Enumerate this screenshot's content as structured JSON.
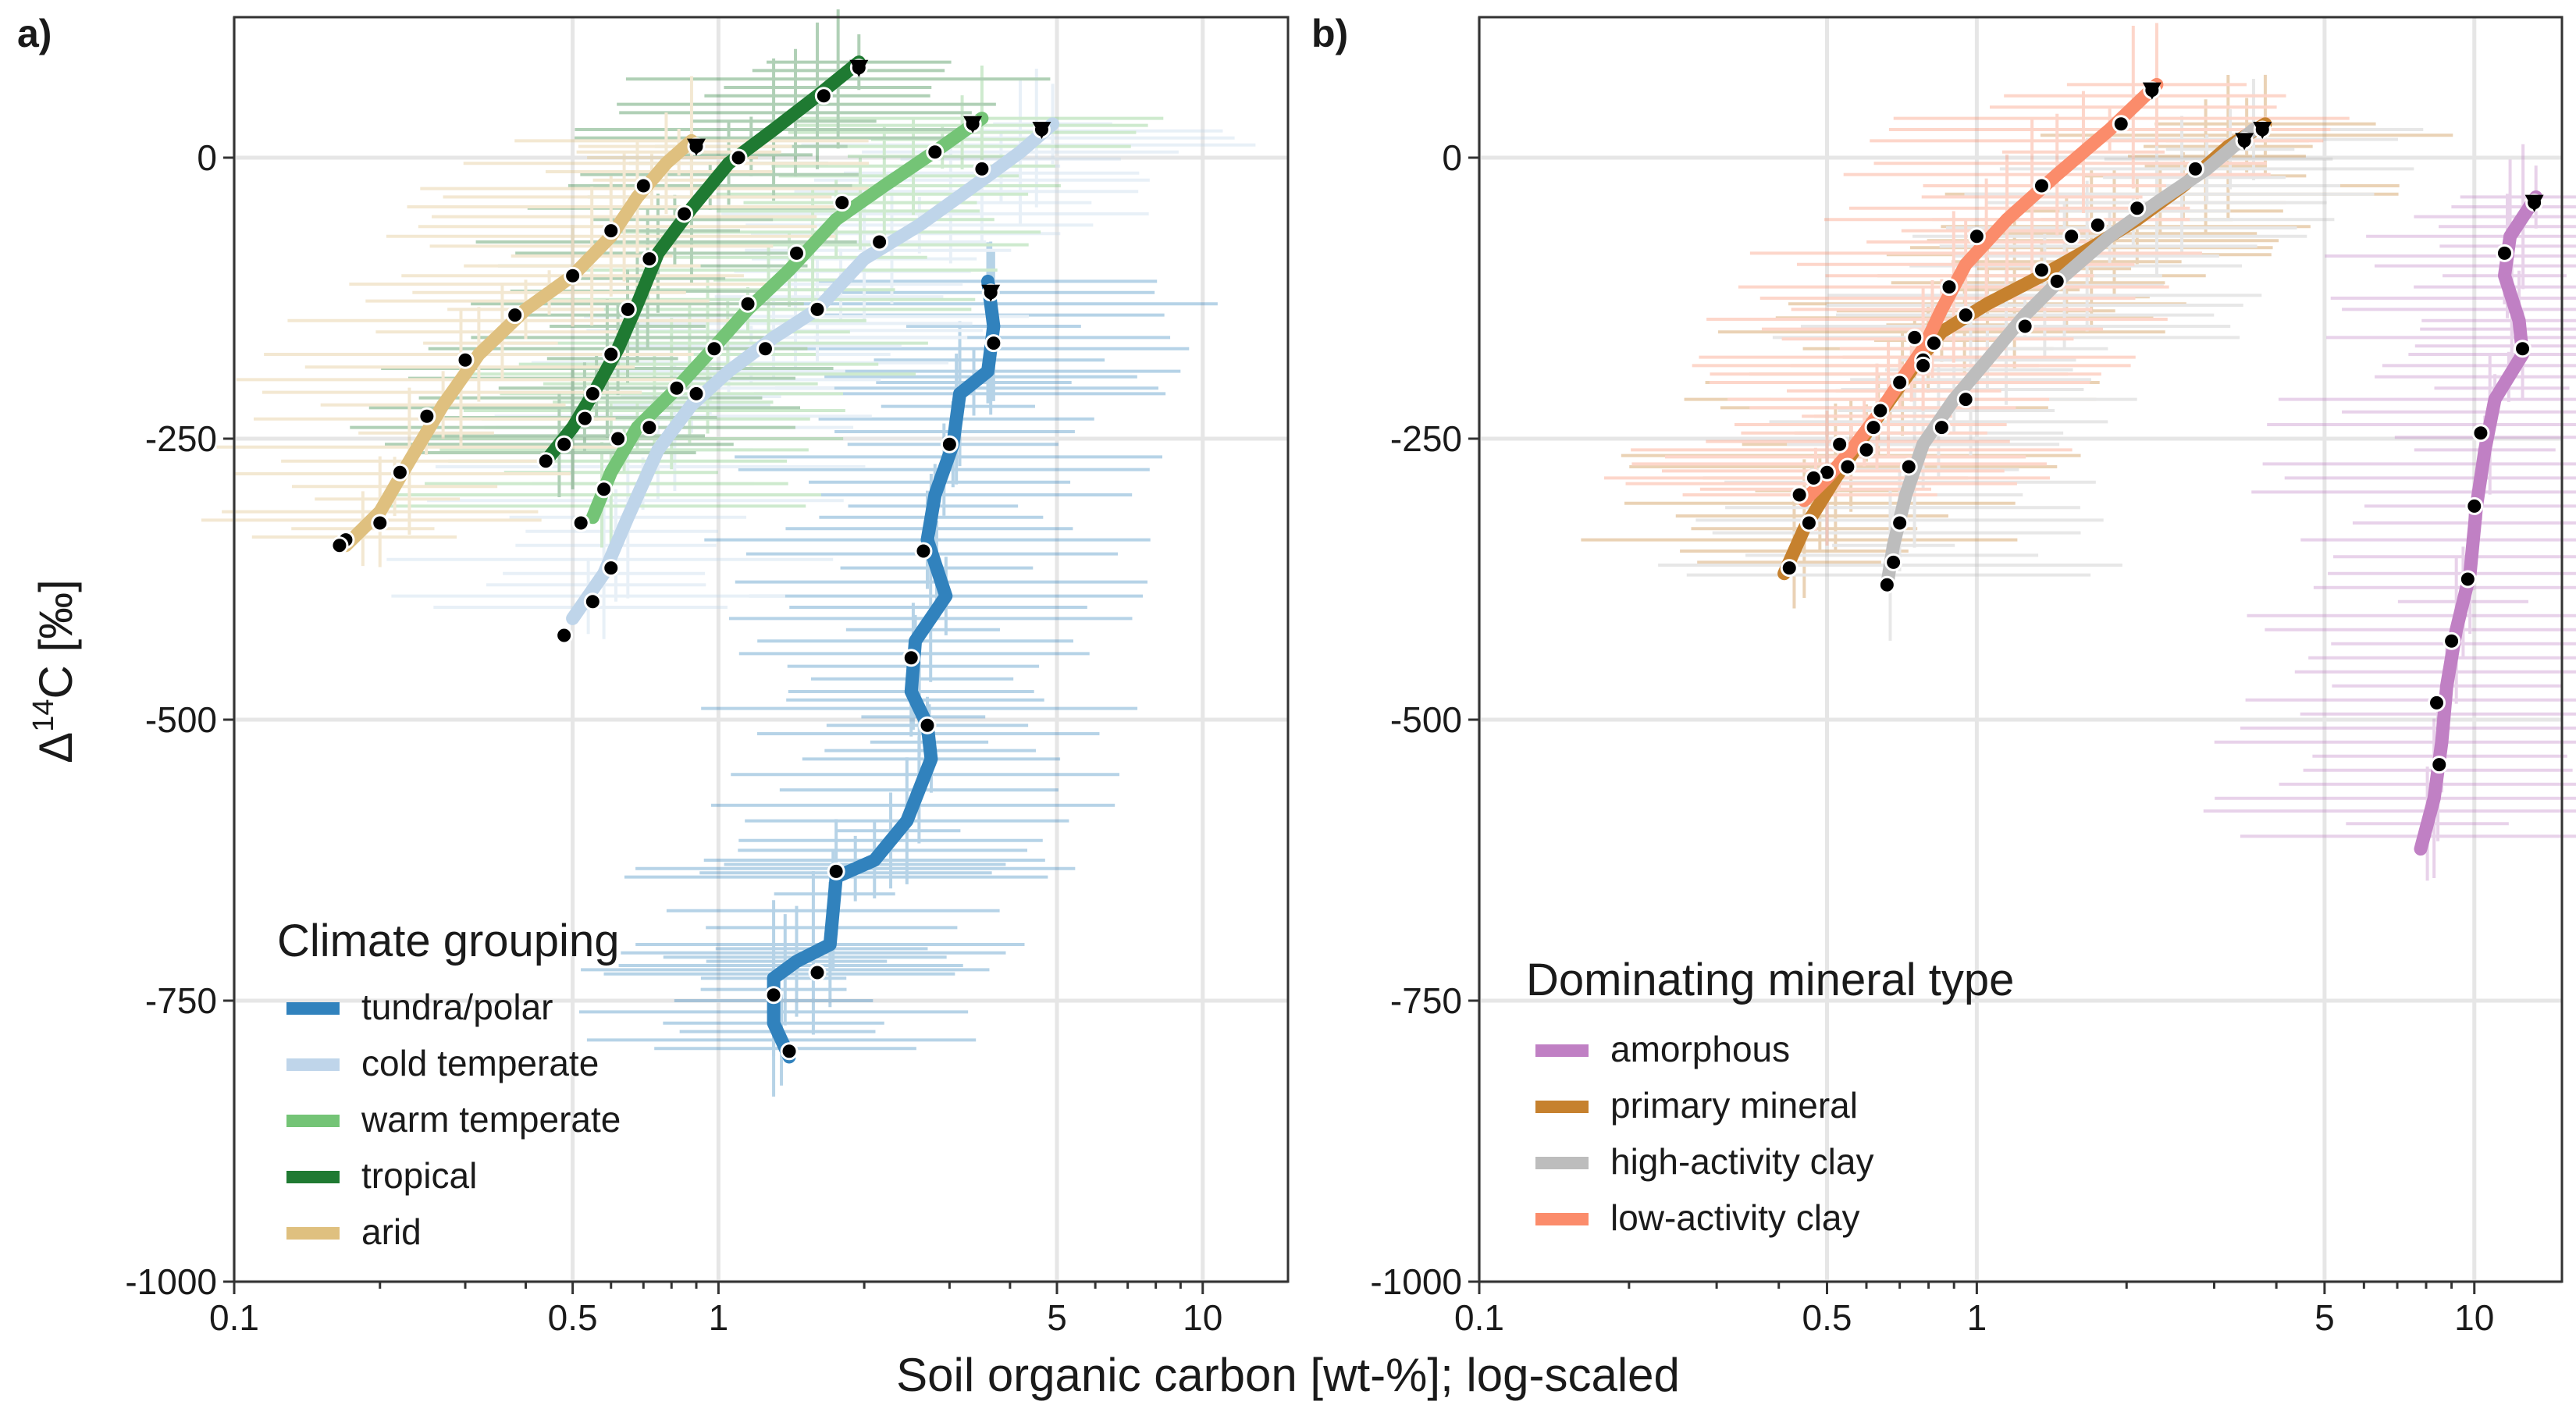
{
  "figure": {
    "xlabel": "Soil organic carbon [wt-%]; log-scaled",
    "ylabel_prefix": "Δ",
    "ylabel_sup": "14",
    "ylabel_suffix": "C [‰]"
  },
  "chart_data": [
    {
      "panel": "a)",
      "type": "line",
      "x_scale": "log",
      "xlim": [
        0.1,
        15
      ],
      "ylim": [
        -1000,
        125
      ],
      "x_ticks": [
        0.1,
        0.5,
        1,
        5,
        10
      ],
      "x_tick_labels": [
        "0.1",
        "0.5",
        "1",
        "5",
        "10"
      ],
      "y_ticks": [
        0,
        -250,
        -500,
        -750,
        -1000
      ],
      "y_tick_labels": [
        "0",
        "-250",
        "-500",
        "-750",
        "-1000"
      ],
      "grid": true,
      "legend": {
        "title": "Climate grouping",
        "position": "bottom-left",
        "entries": [
          "tundra/polar",
          "cold temperate",
          "warm temperate",
          "tropical",
          "arid"
        ]
      },
      "series": [
        {
          "name": "tundra/polar",
          "color": "#3182bd",
          "points": [
            [
              3.65,
              -120
            ],
            [
              3.7,
              -165
            ],
            [
              3.0,
              -255
            ],
            [
              2.65,
              -350
            ],
            [
              2.5,
              -445
            ],
            [
              2.7,
              -505
            ],
            [
              1.75,
              -635
            ],
            [
              1.6,
              -725
            ],
            [
              1.3,
              -745
            ],
            [
              1.4,
              -795
            ]
          ],
          "line": [
            [
              3.6,
              -110
            ],
            [
              3.7,
              -150
            ],
            [
              3.6,
              -190
            ],
            [
              3.15,
              -210
            ],
            [
              3.05,
              -255
            ],
            [
              2.8,
              -300
            ],
            [
              2.7,
              -340
            ],
            [
              2.95,
              -390
            ],
            [
              2.55,
              -430
            ],
            [
              2.5,
              -475
            ],
            [
              2.7,
              -505
            ],
            [
              2.75,
              -535
            ],
            [
              2.45,
              -590
            ],
            [
              2.1,
              -625
            ],
            [
              1.75,
              -640
            ],
            [
              1.7,
              -700
            ],
            [
              1.45,
              -715
            ],
            [
              1.3,
              -730
            ],
            [
              1.3,
              -770
            ],
            [
              1.4,
              -800
            ]
          ]
        },
        {
          "name": "cold temperate",
          "color": "#bfd5ea",
          "points": [
            [
              4.65,
              25
            ],
            [
              3.5,
              -10
            ],
            [
              2.15,
              -75
            ],
            [
              1.6,
              -135
            ],
            [
              1.25,
              -170
            ],
            [
              0.9,
              -210
            ],
            [
              0.72,
              -240
            ],
            [
              0.6,
              -365
            ],
            [
              0.55,
              -395
            ],
            [
              0.48,
              -425
            ]
          ],
          "line": [
            [
              4.9,
              30
            ],
            [
              4.2,
              5
            ],
            [
              3.5,
              -20
            ],
            [
              2.6,
              -60
            ],
            [
              2.0,
              -90
            ],
            [
              1.6,
              -135
            ],
            [
              1.3,
              -160
            ],
            [
              1.05,
              -190
            ],
            [
              0.88,
              -220
            ],
            [
              0.75,
              -260
            ],
            [
              0.65,
              -320
            ],
            [
              0.58,
              -370
            ],
            [
              0.5,
              -410
            ]
          ]
        },
        {
          "name": "warm temperate",
          "color": "#74c476",
          "points": [
            [
              3.35,
              30
            ],
            [
              2.8,
              5
            ],
            [
              1.8,
              -40
            ],
            [
              1.45,
              -85
            ],
            [
              1.15,
              -130
            ],
            [
              0.98,
              -170
            ],
            [
              0.82,
              -205
            ],
            [
              0.62,
              -250
            ],
            [
              0.58,
              -295
            ],
            [
              0.52,
              -325
            ]
          ],
          "line": [
            [
              3.5,
              35
            ],
            [
              2.9,
              10
            ],
            [
              2.2,
              -25
            ],
            [
              1.75,
              -55
            ],
            [
              1.4,
              -100
            ],
            [
              1.15,
              -135
            ],
            [
              0.95,
              -175
            ],
            [
              0.8,
              -210
            ],
            [
              0.68,
              -240
            ],
            [
              0.6,
              -280
            ],
            [
              0.55,
              -320
            ]
          ]
        },
        {
          "name": "tropical",
          "color": "#1f7a32",
          "points": [
            [
              1.95,
              80
            ],
            [
              1.65,
              55
            ],
            [
              1.1,
              0
            ],
            [
              0.85,
              -50
            ],
            [
              0.72,
              -90
            ],
            [
              0.65,
              -135
            ],
            [
              0.6,
              -175
            ],
            [
              0.55,
              -210
            ],
            [
              0.53,
              -232
            ],
            [
              0.48,
              -255
            ],
            [
              0.44,
              -270
            ]
          ],
          "line": [
            [
              1.95,
              85
            ],
            [
              1.6,
              55
            ],
            [
              1.3,
              25
            ],
            [
              1.05,
              -5
            ],
            [
              0.88,
              -45
            ],
            [
              0.75,
              -85
            ],
            [
              0.68,
              -130
            ],
            [
              0.62,
              -170
            ],
            [
              0.56,
              -205
            ],
            [
              0.5,
              -240
            ],
            [
              0.44,
              -270
            ]
          ]
        },
        {
          "name": "arid",
          "color": "#dfc07f",
          "points": [
            [
              0.9,
              10
            ],
            [
              0.7,
              -25
            ],
            [
              0.6,
              -65
            ],
            [
              0.5,
              -105
            ],
            [
              0.38,
              -140
            ],
            [
              0.3,
              -180
            ],
            [
              0.25,
              -230
            ],
            [
              0.22,
              -280
            ],
            [
              0.2,
              -325
            ],
            [
              0.17,
              -340
            ],
            [
              0.165,
              -345
            ]
          ],
          "line": [
            [
              0.88,
              15
            ],
            [
              0.78,
              -5
            ],
            [
              0.68,
              -35
            ],
            [
              0.6,
              -70
            ],
            [
              0.5,
              -105
            ],
            [
              0.4,
              -135
            ],
            [
              0.32,
              -175
            ],
            [
              0.27,
              -220
            ],
            [
              0.23,
              -270
            ],
            [
              0.2,
              -315
            ],
            [
              0.17,
              -345
            ]
          ]
        }
      ],
      "end_markers": [
        [
          1.95,
          80
        ],
        [
          0.9,
          10
        ],
        [
          3.35,
          30
        ],
        [
          4.65,
          25
        ],
        [
          3.65,
          -120
        ]
      ]
    },
    {
      "panel": "b)",
      "type": "line",
      "x_scale": "log",
      "xlim": [
        0.1,
        15
      ],
      "ylim": [
        -1000,
        125
      ],
      "x_ticks": [
        0.1,
        0.5,
        1,
        5,
        10
      ],
      "x_tick_labels": [
        "0.1",
        "0.5",
        "1",
        "5",
        "10"
      ],
      "y_ticks": [
        0,
        -250,
        -500,
        -750,
        -1000
      ],
      "y_tick_labels": [
        "0",
        "-250",
        "-500",
        "-750",
        "-1000"
      ],
      "grid": true,
      "legend": {
        "title": "Dominating mineral type",
        "position": "bottom-left",
        "entries": [
          "amorphous",
          "primary mineral",
          "high-activity clay",
          "low-activity clay"
        ]
      },
      "series": [
        {
          "name": "amorphous",
          "color": "#c080c4",
          "points": [
            [
              13.2,
              -40
            ],
            [
              11.5,
              -85
            ],
            [
              12.5,
              -170
            ],
            [
              10.3,
              -245
            ],
            [
              10.0,
              -310
            ],
            [
              9.7,
              -375
            ],
            [
              9.0,
              -430
            ],
            [
              8.4,
              -485
            ],
            [
              8.5,
              -540
            ]
          ],
          "line": [
            [
              13.3,
              -35
            ],
            [
              11.8,
              -70
            ],
            [
              11.5,
              -105
            ],
            [
              12.3,
              -145
            ],
            [
              12.5,
              -175
            ],
            [
              11.0,
              -215
            ],
            [
              10.5,
              -260
            ],
            [
              10.1,
              -310
            ],
            [
              9.8,
              -370
            ],
            [
              9.2,
              -420
            ],
            [
              8.8,
              -470
            ],
            [
              8.6,
              -520
            ],
            [
              8.3,
              -570
            ],
            [
              7.8,
              -615
            ]
          ]
        },
        {
          "name": "primary mineral",
          "color": "#c6812e",
          "points": [
            [
              3.75,
              25
            ],
            [
              3.45,
              15
            ],
            [
              2.75,
              -10
            ],
            [
              1.75,
              -60
            ],
            [
              1.45,
              -110
            ],
            [
              0.95,
              -140
            ],
            [
              0.78,
              -180
            ],
            [
              0.75,
              -160
            ],
            [
              0.6,
              -260
            ],
            [
              0.5,
              -280
            ],
            [
              0.46,
              -325
            ],
            [
              0.42,
              -365
            ]
          ],
          "line": [
            [
              3.8,
              30
            ],
            [
              3.2,
              10
            ],
            [
              2.6,
              -25
            ],
            [
              2.1,
              -55
            ],
            [
              1.7,
              -80
            ],
            [
              1.35,
              -105
            ],
            [
              1.05,
              -130
            ],
            [
              0.85,
              -155
            ],
            [
              0.75,
              -185
            ],
            [
              0.67,
              -215
            ],
            [
              0.6,
              -245
            ],
            [
              0.52,
              -285
            ],
            [
              0.45,
              -330
            ],
            [
              0.41,
              -370
            ]
          ]
        },
        {
          "name": "high-activity clay",
          "color": "#bdbdbd",
          "points": [
            [
              3.45,
              15
            ],
            [
              2.1,
              -45
            ],
            [
              1.55,
              -70
            ],
            [
              1.35,
              -100
            ],
            [
              1.25,
              -150
            ],
            [
              0.95,
              -215
            ],
            [
              0.85,
              -240
            ],
            [
              0.73,
              -275
            ],
            [
              0.7,
              -325
            ],
            [
              0.68,
              -360
            ],
            [
              0.66,
              -380
            ]
          ],
          "line": [
            [
              3.6,
              25
            ],
            [
              2.9,
              -10
            ],
            [
              2.3,
              -40
            ],
            [
              1.85,
              -70
            ],
            [
              1.5,
              -105
            ],
            [
              1.25,
              -140
            ],
            [
              1.05,
              -180
            ],
            [
              0.9,
              -215
            ],
            [
              0.78,
              -255
            ],
            [
              0.72,
              -300
            ],
            [
              0.68,
              -345
            ],
            [
              0.66,
              -380
            ]
          ]
        },
        {
          "name": "low-activity clay",
          "color": "#fb8c6b",
          "points": [
            [
              2.25,
              60
            ],
            [
              1.95,
              30
            ],
            [
              1.35,
              -25
            ],
            [
              1.0,
              -70
            ],
            [
              0.88,
              -115
            ],
            [
              0.82,
              -165
            ],
            [
              0.78,
              -185
            ],
            [
              0.7,
              -200
            ],
            [
              0.64,
              -225
            ],
            [
              0.62,
              -240
            ],
            [
              0.55,
              -275
            ],
            [
              0.53,
              -255
            ],
            [
              0.47,
              -285
            ],
            [
              0.44,
              -300
            ]
          ],
          "line": [
            [
              2.3,
              65
            ],
            [
              1.85,
              25
            ],
            [
              1.45,
              -15
            ],
            [
              1.15,
              -55
            ],
            [
              0.95,
              -95
            ],
            [
              0.85,
              -135
            ],
            [
              0.78,
              -170
            ],
            [
              0.7,
              -200
            ],
            [
              0.63,
              -230
            ],
            [
              0.56,
              -260
            ],
            [
              0.5,
              -285
            ],
            [
              0.45,
              -305
            ]
          ]
        }
      ],
      "end_markers": [
        [
          2.25,
          60
        ],
        [
          3.75,
          25
        ],
        [
          3.45,
          15
        ],
        [
          13.2,
          -40
        ]
      ]
    }
  ]
}
